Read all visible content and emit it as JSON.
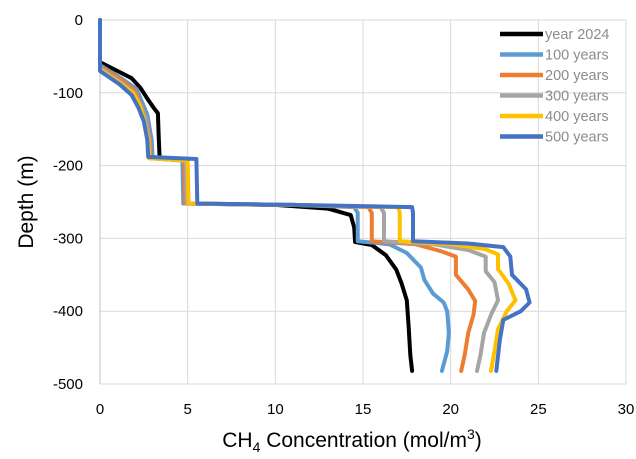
{
  "chart_data": {
    "type": "line",
    "xlabel": {
      "prefix": "CH",
      "sub": "4",
      "middle": " Concentration (mol/m",
      "sup": "3",
      "suffix": ")"
    },
    "ylabel": "Depth (m)",
    "xlim": [
      0,
      30
    ],
    "ylim": [
      -500,
      0
    ],
    "x_ticks": [
      0,
      5,
      10,
      15,
      20,
      25,
      30
    ],
    "y_ticks": [
      0,
      -100,
      -200,
      -300,
      -400,
      -500
    ],
    "grid": true,
    "legend_position": "top-right",
    "series": [
      {
        "name": "year 2024",
        "color": "#000000",
        "points": [
          [
            0,
            0
          ],
          [
            0,
            -58
          ],
          [
            1.0,
            -70
          ],
          [
            1.8,
            -80
          ],
          [
            2.3,
            -93
          ],
          [
            2.7,
            -108
          ],
          [
            3.1,
            -122
          ],
          [
            3.3,
            -128
          ],
          [
            3.35,
            -160
          ],
          [
            3.4,
            -189
          ],
          [
            4.8,
            -192
          ],
          [
            4.85,
            -252
          ],
          [
            10,
            -254
          ],
          [
            13,
            -259
          ],
          [
            14.3,
            -268
          ],
          [
            14.5,
            -285
          ],
          [
            14.55,
            -305
          ],
          [
            15.5,
            -309
          ],
          [
            16.3,
            -323
          ],
          [
            16.9,
            -343
          ],
          [
            17.2,
            -362
          ],
          [
            17.5,
            -385
          ],
          [
            17.6,
            -420
          ],
          [
            17.7,
            -460
          ],
          [
            17.8,
            -482
          ]
        ]
      },
      {
        "name": "100 years",
        "color": "#5b9bd5",
        "points": [
          [
            0,
            0
          ],
          [
            0,
            -62
          ],
          [
            1.2,
            -80
          ],
          [
            2.1,
            -95
          ],
          [
            2.4,
            -113
          ],
          [
            2.7,
            -130
          ],
          [
            2.95,
            -165
          ],
          [
            3.0,
            -190
          ],
          [
            4.7,
            -193
          ],
          [
            4.75,
            -252
          ],
          [
            11,
            -254
          ],
          [
            14.5,
            -257
          ],
          [
            14.7,
            -265
          ],
          [
            14.7,
            -304
          ],
          [
            16.5,
            -308
          ],
          [
            17.5,
            -320
          ],
          [
            18.3,
            -340
          ],
          [
            18.5,
            -357
          ],
          [
            19.0,
            -376
          ],
          [
            19.6,
            -388
          ],
          [
            19.8,
            -400
          ],
          [
            19.9,
            -430
          ],
          [
            19.8,
            -455
          ],
          [
            19.5,
            -482
          ]
        ]
      },
      {
        "name": "200 years",
        "color": "#ed7d31",
        "points": [
          [
            0,
            0
          ],
          [
            0,
            -64
          ],
          [
            1.2,
            -82
          ],
          [
            2.0,
            -97
          ],
          [
            2.3,
            -115
          ],
          [
            2.6,
            -133
          ],
          [
            2.85,
            -165
          ],
          [
            2.9,
            -190
          ],
          [
            4.8,
            -193
          ],
          [
            4.85,
            -252
          ],
          [
            11,
            -254
          ],
          [
            15.3,
            -257
          ],
          [
            15.5,
            -265
          ],
          [
            15.5,
            -304
          ],
          [
            18,
            -308
          ],
          [
            19.5,
            -318
          ],
          [
            20.3,
            -325
          ],
          [
            20.3,
            -350
          ],
          [
            21,
            -370
          ],
          [
            21.4,
            -386
          ],
          [
            21.3,
            -405
          ],
          [
            21.0,
            -430
          ],
          [
            20.8,
            -460
          ],
          [
            20.6,
            -482
          ]
        ]
      },
      {
        "name": "300 years",
        "color": "#a5a5a5",
        "points": [
          [
            0,
            0
          ],
          [
            0,
            -66
          ],
          [
            1.1,
            -84
          ],
          [
            1.9,
            -99
          ],
          [
            2.3,
            -117
          ],
          [
            2.6,
            -135
          ],
          [
            2.8,
            -165
          ],
          [
            2.85,
            -190
          ],
          [
            4.9,
            -193
          ],
          [
            4.95,
            -252
          ],
          [
            11,
            -254
          ],
          [
            16,
            -257
          ],
          [
            16.2,
            -265
          ],
          [
            16.2,
            -304
          ],
          [
            19,
            -308
          ],
          [
            21,
            -316
          ],
          [
            22,
            -325
          ],
          [
            22,
            -345
          ],
          [
            22.5,
            -360
          ],
          [
            22.7,
            -385
          ],
          [
            22.3,
            -405
          ],
          [
            21.9,
            -430
          ],
          [
            21.7,
            -460
          ],
          [
            21.5,
            -482
          ]
        ]
      },
      {
        "name": "400 years",
        "color": "#ffc000",
        "points": [
          [
            0,
            0
          ],
          [
            0,
            -68
          ],
          [
            1.1,
            -86
          ],
          [
            1.9,
            -101
          ],
          [
            2.3,
            -119
          ],
          [
            2.5,
            -137
          ],
          [
            2.75,
            -165
          ],
          [
            2.8,
            -190
          ],
          [
            5.0,
            -193
          ],
          [
            5.05,
            -252
          ],
          [
            11,
            -254
          ],
          [
            17,
            -257
          ],
          [
            17.1,
            -265
          ],
          [
            17.1,
            -304
          ],
          [
            20,
            -308
          ],
          [
            22,
            -315
          ],
          [
            22.7,
            -322
          ],
          [
            22.7,
            -342
          ],
          [
            23.3,
            -362
          ],
          [
            23.7,
            -385
          ],
          [
            23.2,
            -400
          ],
          [
            22.7,
            -425
          ],
          [
            22.5,
            -455
          ],
          [
            22.3,
            -482
          ]
        ]
      },
      {
        "name": "500 years",
        "color": "#4472c4",
        "points": [
          [
            0,
            0
          ],
          [
            0,
            -70
          ],
          [
            1.1,
            -88
          ],
          [
            1.8,
            -103
          ],
          [
            2.2,
            -121
          ],
          [
            2.5,
            -139
          ],
          [
            2.7,
            -165
          ],
          [
            2.75,
            -188
          ],
          [
            5.5,
            -191
          ],
          [
            5.55,
            -252
          ],
          [
            11,
            -254
          ],
          [
            17.8,
            -257
          ],
          [
            17.85,
            -265
          ],
          [
            17.85,
            -304
          ],
          [
            21,
            -307
          ],
          [
            23.0,
            -312
          ],
          [
            23.4,
            -325
          ],
          [
            23.5,
            -350
          ],
          [
            24.3,
            -370
          ],
          [
            24.5,
            -388
          ],
          [
            24.0,
            -400
          ],
          [
            23.0,
            -412
          ],
          [
            22.8,
            -440
          ],
          [
            22.6,
            -482
          ]
        ]
      }
    ]
  }
}
